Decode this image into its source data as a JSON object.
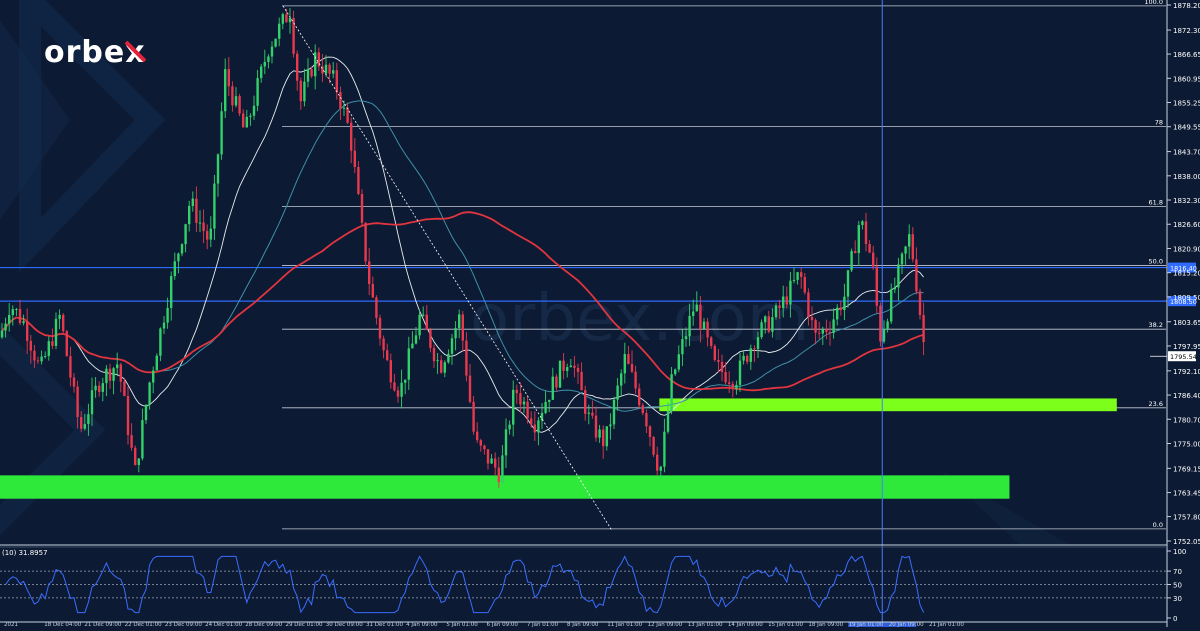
{
  "brand": {
    "logo_text": "orbex",
    "watermark_text": "orbex.com"
  },
  "chart_data": {
    "type": "candlestick",
    "price_axis": {
      "min": 1752.05,
      "max": 1878.2,
      "ticks": [
        "1878.20",
        "1872.30",
        "1866.65",
        "1860.95",
        "1855.25",
        "1849.55",
        "1843.70",
        "1838.00",
        "1832.30",
        "1826.60",
        "1820.90",
        "1815.20",
        "1809.50",
        "1803.65",
        "1797.95",
        "1792.10",
        "1786.40",
        "1780.70",
        "1775.00",
        "1769.15",
        "1763.45",
        "1757.80",
        "1752.05"
      ]
    },
    "current_price_label": "1795.54",
    "current_price": 1795.54,
    "fibonacci_levels": [
      {
        "label": "100.0",
        "price": 1878.0
      },
      {
        "label": "78",
        "price": 1849.6
      },
      {
        "label": "61.8",
        "price": 1830.8
      },
      {
        "label": "50.0",
        "price": 1816.9
      },
      {
        "label": "38.2",
        "price": 1801.9
      },
      {
        "label": "23.6",
        "price": 1783.4
      },
      {
        "label": "0.0",
        "price": 1754.9
      }
    ],
    "horizontal_lines": [
      {
        "label": "1816.40",
        "price": 1816.4,
        "color": "#2f6bff"
      },
      {
        "label": "1808.50",
        "price": 1808.5,
        "color": "#2f6bff"
      }
    ],
    "zones": [
      {
        "name": "support-zone-upper",
        "from_price": 1782.6,
        "to_price": 1785.6,
        "color": "#7cff1a",
        "start": 0.565,
        "end": 0.957
      },
      {
        "name": "support-zone-lower",
        "from_price": 1762.0,
        "to_price": 1767.5,
        "color": "#2ee83a",
        "start": 0.0,
        "end": 0.865
      }
    ],
    "vertical_marker": {
      "position": 0.756,
      "color": "#4a7dff"
    },
    "oscillator": {
      "label": "(10) 31.8957",
      "ticks": [
        "100",
        "70",
        "50",
        "30",
        "0"
      ],
      "levels": [
        70,
        50,
        30
      ],
      "min": 0,
      "max": 100
    },
    "time_axis": [
      "2021",
      "18 Dec 04:00",
      "21 Dec 09:00",
      "22 Dec 01:00",
      "23 Dec 09:00",
      "24 Dec 01:00",
      "28 Dec 09:00",
      "29 Dec 01:00",
      "30 Dec 09:00",
      "31 Dec 01:00",
      "4 Jan 09:00",
      "5 Jan 01:00",
      "6 Jan 09:00",
      "7 Jan 01:00",
      "8 Jan 09:00",
      "11 Jan 01:00",
      "12 Jan 09:00",
      "13 Jan 01:00",
      "14 Jan 09:00",
      "15 Jan 01:00",
      "18 Jan 09:00",
      "19 Jan 01:00",
      "20 Jan 09:00",
      "21 Jan 01:00"
    ]
  }
}
